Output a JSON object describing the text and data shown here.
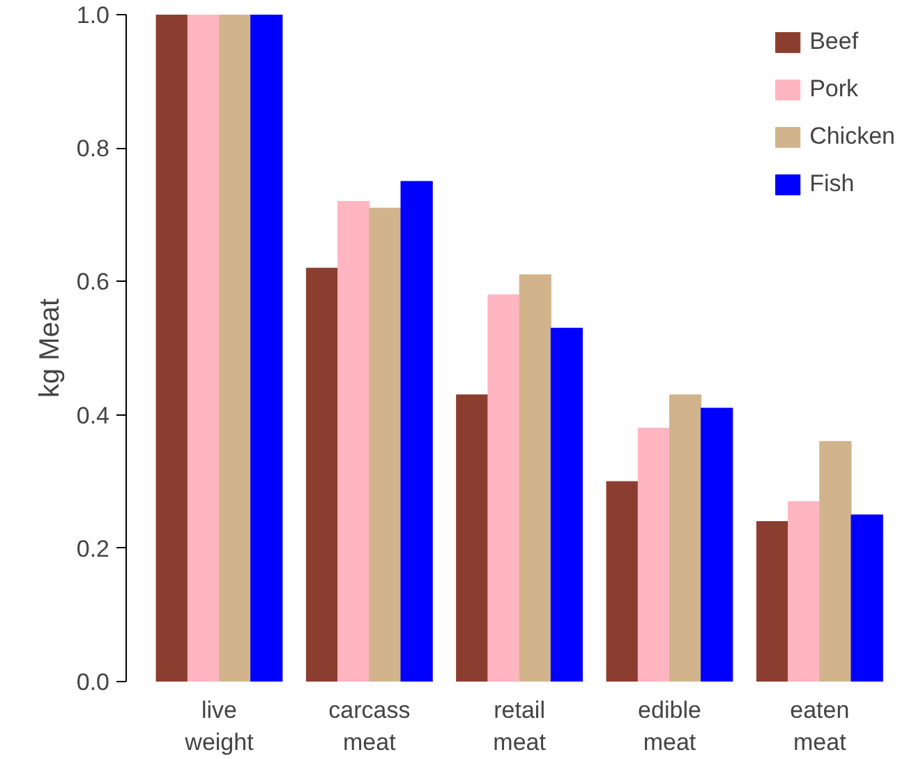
{
  "chart_data": {
    "type": "bar",
    "ylabel": "kg Meat",
    "categories": [
      "live weight",
      "carcass meat",
      "retail meat",
      "edible meat",
      "eaten meat"
    ],
    "series": [
      {
        "name": "Beef",
        "color": "#8b3e2f",
        "values": [
          1.0,
          0.62,
          0.43,
          0.3,
          0.24
        ]
      },
      {
        "name": "Pork",
        "color": "#ffb6c1",
        "values": [
          1.0,
          0.72,
          0.58,
          0.38,
          0.27
        ]
      },
      {
        "name": "Chicken",
        "color": "#d2b48c",
        "values": [
          1.0,
          0.71,
          0.61,
          0.43,
          0.36
        ]
      },
      {
        "name": "Fish",
        "color": "#0000ff",
        "values": [
          1.0,
          0.75,
          0.53,
          0.41,
          0.25
        ]
      }
    ],
    "ylim": [
      0,
      1
    ],
    "yticks": [
      {
        "value": 0,
        "label": "0.0"
      },
      {
        "value": 0.2,
        "label": "0.2"
      },
      {
        "value": 0.4,
        "label": "0.4"
      },
      {
        "value": 0.6,
        "label": "0.6"
      },
      {
        "value": 0.8,
        "label": "0.8"
      },
      {
        "value": 1,
        "label": "1.0"
      }
    ],
    "grid": false,
    "legend": "top right"
  }
}
